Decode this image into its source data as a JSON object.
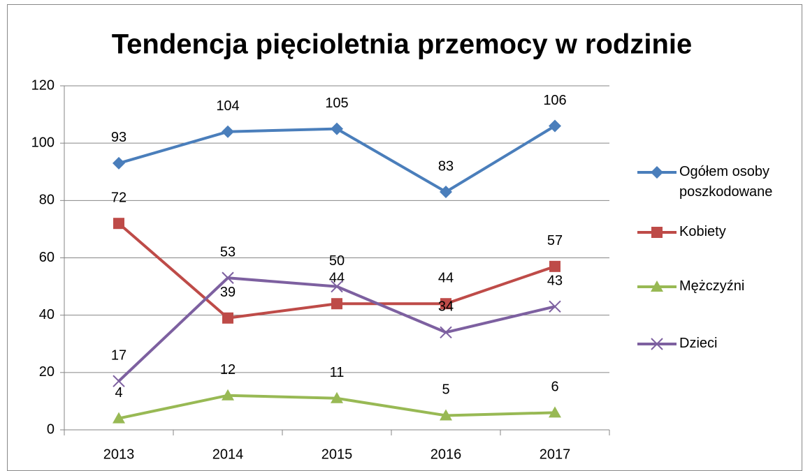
{
  "chart_data": {
    "type": "line",
    "title": "Tendencja pięcioletnia przemocy w rodzinie",
    "categories": [
      "2013",
      "2014",
      "2015",
      "2016",
      "2017"
    ],
    "series": [
      {
        "name": "Ogółem osoby poszkodowane",
        "color": "#4a7ebb",
        "marker": "diamond",
        "values": [
          93,
          104,
          105,
          83,
          106
        ]
      },
      {
        "name": "Kobiety",
        "color": "#be4b48",
        "marker": "square",
        "values": [
          72,
          39,
          44,
          44,
          57
        ]
      },
      {
        "name": "Mężczyźni",
        "color": "#98b954",
        "marker": "triangle",
        "values": [
          4,
          12,
          11,
          5,
          6
        ]
      },
      {
        "name": "Dzieci",
        "color": "#7d60a0",
        "marker": "x",
        "values": [
          17,
          53,
          50,
          34,
          43
        ]
      }
    ],
    "ylim": [
      0,
      120
    ],
    "yticks": [
      0,
      20,
      40,
      60,
      80,
      100,
      120
    ],
    "grid": true,
    "legend": "right",
    "data_labels": true
  }
}
